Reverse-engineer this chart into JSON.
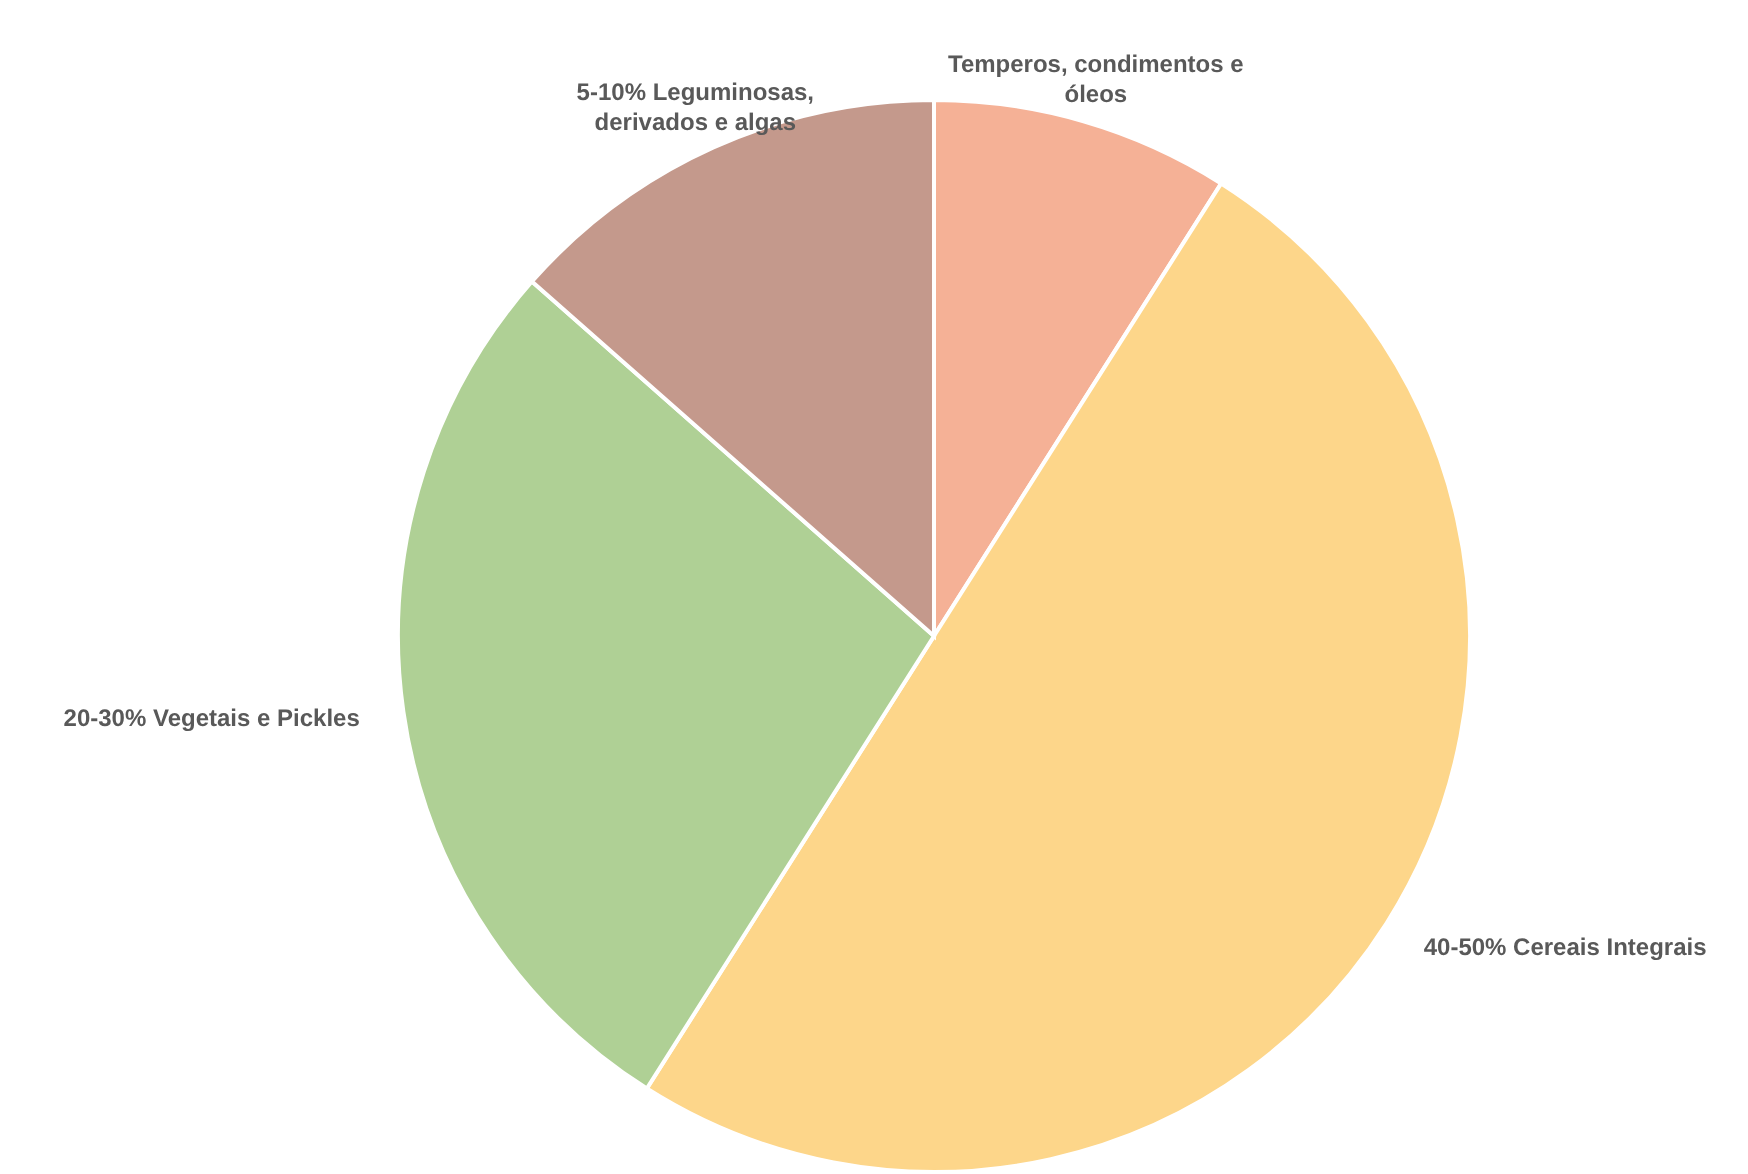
{
  "chart_data": {
    "type": "pie",
    "categories": [
      "Temperos, condimentos e óleos",
      "40-50% Cereais Integrais",
      "20-30% Vegetais e Pickles",
      "5-10% Leguminosas, derivados e algas"
    ],
    "values": [
      9,
      50,
      27.5,
      13.5
    ],
    "colors": [
      "#f5b196",
      "#fdd68a",
      "#afd095",
      "#c4998c"
    ]
  }
}
